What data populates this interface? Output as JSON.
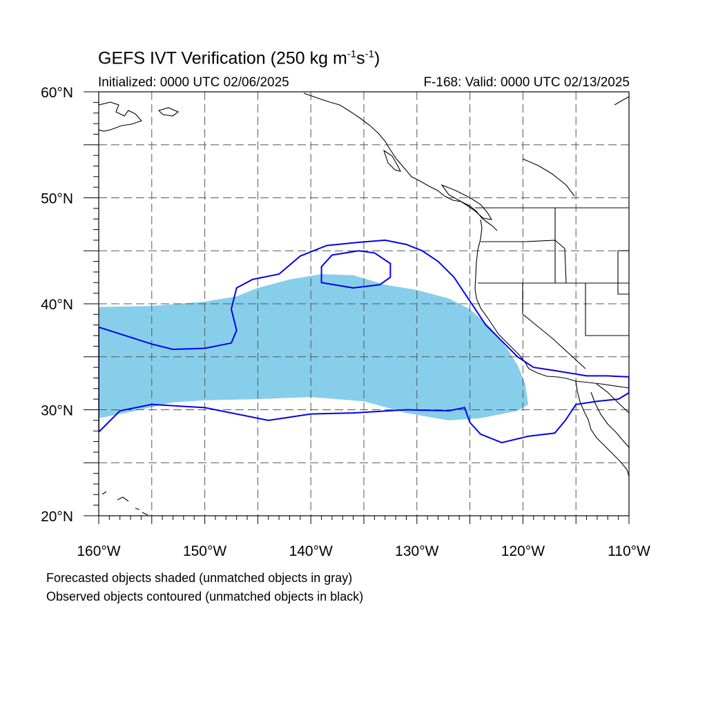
{
  "header": {
    "title": "GEFS IVT Verification (250 kg m",
    "title_exp1": "-1",
    "title_mid": "s",
    "title_exp2": "-1",
    "title_end": ")",
    "initialized": "Initialized: 0000 UTC 02/06/2025",
    "valid": "F-168: Valid: 0000 UTC 02/13/2025"
  },
  "map": {
    "lon_range": [
      -160,
      -110
    ],
    "lat_range": [
      20,
      60
    ],
    "lon_ticks": [
      {
        "value": -160,
        "label": "160°W"
      },
      {
        "value": -150,
        "label": "150°W"
      },
      {
        "value": -140,
        "label": "140°W"
      },
      {
        "value": -130,
        "label": "130°W"
      },
      {
        "value": -120,
        "label": "120°W"
      },
      {
        "value": -110,
        "label": "110°W"
      }
    ],
    "lat_ticks": [
      {
        "value": 60,
        "label": "60°N"
      },
      {
        "value": 50,
        "label": "50°N"
      },
      {
        "value": 40,
        "label": "40°N"
      },
      {
        "value": 30,
        "label": "30°N"
      },
      {
        "value": 20,
        "label": "20°N"
      }
    ],
    "grid_spacing_deg": 5,
    "grid_style": "dashed",
    "colors": {
      "forecast_fill": "#87ceeb",
      "observed_contour": "#0000ee",
      "coastline": "#000000"
    }
  },
  "chart_data": {
    "type": "map",
    "forecast_object": {
      "description_text": "Forecasted objects shaded",
      "outline_lonlat": [
        [
          -160,
          39.7
        ],
        [
          -155,
          39.8
        ],
        [
          -150,
          40.2
        ],
        [
          -147,
          40.7
        ],
        [
          -145,
          41.5
        ],
        [
          -142,
          42.3
        ],
        [
          -139,
          42.8
        ],
        [
          -136,
          42.7
        ],
        [
          -133,
          41.8
        ],
        [
          -130,
          41.3
        ],
        [
          -127,
          40.5
        ],
        [
          -125,
          39.5
        ],
        [
          -123,
          37.7
        ],
        [
          -121.5,
          35.8
        ],
        [
          -120.5,
          34.2
        ],
        [
          -119.8,
          32.5
        ],
        [
          -119.5,
          30.5
        ],
        [
          -120.5,
          29.9
        ],
        [
          -124,
          29.2
        ],
        [
          -127,
          29.0
        ],
        [
          -131,
          29.7
        ],
        [
          -135,
          30.8
        ],
        [
          -140,
          31.2
        ],
        [
          -145,
          31.0
        ],
        [
          -150,
          30.9
        ],
        [
          -153,
          30.7
        ],
        [
          -157,
          29.8
        ],
        [
          -160,
          29.2
        ]
      ]
    },
    "observed_object": {
      "description_text": "Observed objects contoured",
      "outline_lonlat": [
        [
          -160,
          37.8
        ],
        [
          -157.5,
          37.0
        ],
        [
          -155,
          36.2
        ],
        [
          -153,
          35.7
        ],
        [
          -150,
          35.8
        ],
        [
          -147.5,
          36.3
        ],
        [
          -147,
          37.5
        ],
        [
          -147.5,
          39.5
        ],
        [
          -147,
          41.5
        ],
        [
          -145.5,
          42.3
        ],
        [
          -143,
          42.8
        ],
        [
          -141,
          44.5
        ],
        [
          -138.5,
          45.5
        ],
        [
          -135.5,
          45.8
        ],
        [
          -133,
          46.0
        ],
        [
          -131,
          45.6
        ],
        [
          -129.5,
          45.0
        ],
        [
          -128,
          44.0
        ],
        [
          -126.5,
          42.5
        ],
        [
          -125.5,
          41.0
        ],
        [
          -124.5,
          39.5
        ],
        [
          -123.5,
          38.0
        ],
        [
          -122,
          36.5
        ],
        [
          -120.5,
          35.0
        ],
        [
          -119,
          34.0
        ],
        [
          -117,
          33.7
        ],
        [
          -114,
          33.2
        ],
        [
          -112,
          33.2
        ],
        [
          -110,
          33.1
        ],
        [
          -110,
          31.6
        ],
        [
          -111,
          31.0
        ],
        [
          -113,
          30.8
        ],
        [
          -115,
          30.5
        ],
        [
          -116,
          29.0
        ],
        [
          -117,
          27.8
        ],
        [
          -119.5,
          27.5
        ],
        [
          -122,
          26.9
        ],
        [
          -124,
          27.7
        ],
        [
          -125,
          28.8
        ],
        [
          -125.5,
          30.2
        ],
        [
          -127,
          29.9
        ],
        [
          -131,
          30.0
        ],
        [
          -136,
          29.7
        ],
        [
          -140,
          29.6
        ],
        [
          -144,
          29.0
        ],
        [
          -150,
          30.2
        ],
        [
          -155,
          30.5
        ],
        [
          -158,
          29.9
        ],
        [
          -160,
          27.9
        ]
      ],
      "inner_hole_lonlat": [
        [
          -139,
          43.5
        ],
        [
          -138,
          44.6
        ],
        [
          -135.5,
          45.0
        ],
        [
          -134,
          44.8
        ],
        [
          -132.5,
          43.8
        ],
        [
          -132.5,
          42.5
        ],
        [
          -133.5,
          41.8
        ],
        [
          -136,
          41.5
        ],
        [
          -139,
          42.0
        ]
      ]
    }
  },
  "footer": {
    "line1": "Forecasted objects shaded (unmatched objects in gray)",
    "line2": "Observed objects contoured (unmatched objects in black)"
  }
}
